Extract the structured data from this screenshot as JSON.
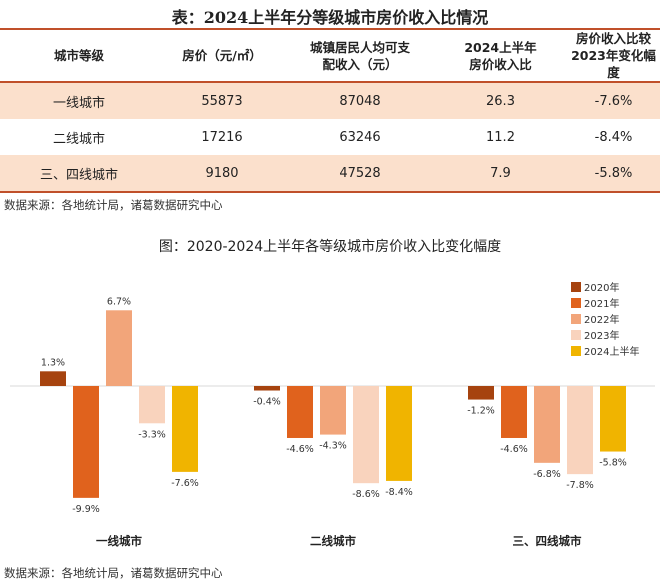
{
  "table": {
    "title": "表：2024上半年分等级城市房价收入比情况",
    "headers": [
      [
        "城市等级"
      ],
      [
        "房价（元/㎡）"
      ],
      [
        "城镇居民人均可支",
        "配收入（元）"
      ],
      [
        "2024上半年",
        "房价收入比"
      ],
      [
        "房价收入比较",
        "2023年变化幅度"
      ]
    ],
    "rows": [
      [
        "一线城市",
        "55873",
        "87048",
        "26.3",
        "-7.6%"
      ],
      [
        "二线城市",
        "17216",
        "63246",
        "11.2",
        "-8.4%"
      ],
      [
        "三、四线城市",
        "9180",
        "47528",
        "7.9",
        "-5.8%"
      ]
    ],
    "source": "数据来源：各地统计局，诸葛数据研究中心"
  },
  "chart_data": {
    "type": "bar",
    "title": "图：2020-2024上半年各等级城市房价收入比变化幅度",
    "categories": [
      "一线城市",
      "二线城市",
      "三、四线城市"
    ],
    "series": [
      {
        "name": "2020年",
        "color": "#a6430f",
        "values": [
          1.3,
          -0.4,
          -1.2
        ]
      },
      {
        "name": "2021年",
        "color": "#e0621d",
        "values": [
          -9.9,
          -4.6,
          -4.6
        ]
      },
      {
        "name": "2022年",
        "color": "#f2a57a",
        "values": [
          6.7,
          -4.3,
          -6.8
        ]
      },
      {
        "name": "2023年",
        "color": "#f9d3bd",
        "values": [
          -3.3,
          -8.6,
          -7.8
        ]
      },
      {
        "name": "2024上半年",
        "color": "#f0b400",
        "values": [
          -7.6,
          -8.4,
          -5.8
        ]
      }
    ],
    "value_suffix": "%",
    "legend": "top-right",
    "grid": false,
    "source": "数据来源：各地统计局，诸葛数据研究中心"
  }
}
